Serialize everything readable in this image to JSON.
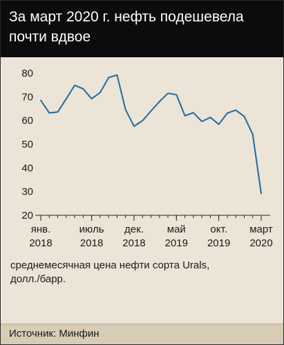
{
  "header": {
    "title_line1": "За март 2020 г. нефть подешевела",
    "title_line2": "почти вдвое"
  },
  "note": {
    "line1": "среднемесячная цена нефти сорта Urals,",
    "line2": "долл./барр."
  },
  "source": {
    "text": "Источник: Минфин"
  },
  "colors": {
    "header_bg": "#0c0c0c",
    "line": "#1e6aa3",
    "axis": "#222222",
    "background": "#ece4d6",
    "source_bg": "#d8ccb6"
  },
  "chart_data": {
    "type": "line",
    "title": "За март 2020 г. нефть подешевела почти вдвое",
    "ylabel": "среднемесячная цена нефти сорта Urals, долл./барр.",
    "xlabel": "",
    "ylim": [
      20,
      80
    ],
    "yticks": [
      20,
      30,
      40,
      50,
      60,
      70,
      80
    ],
    "grid": false,
    "x_categories": [
      "2018-01",
      "2018-02",
      "2018-03",
      "2018-04",
      "2018-05",
      "2018-06",
      "2018-07",
      "2018-08",
      "2018-09",
      "2018-10",
      "2018-11",
      "2018-12",
      "2019-01",
      "2019-02",
      "2019-03",
      "2019-04",
      "2019-05",
      "2019-06",
      "2019-07",
      "2019-08",
      "2019-09",
      "2019-10",
      "2019-11",
      "2019-12",
      "2020-01",
      "2020-02",
      "2020-03"
    ],
    "xticks": [
      {
        "index": 0,
        "line1": "янв.",
        "line2": "2018"
      },
      {
        "index": 6,
        "line1": "июль",
        "line2": "2018"
      },
      {
        "index": 11,
        "line1": "дек.",
        "line2": "2018"
      },
      {
        "index": 16,
        "line1": "май",
        "line2": "2019"
      },
      {
        "index": 21,
        "line1": "окт.",
        "line2": "2019"
      },
      {
        "index": 26,
        "line1": "март",
        "line2": "2020"
      }
    ],
    "series": [
      {
        "values": [
          68.5,
          63.2,
          63.6,
          69.1,
          74.9,
          73.4,
          69.2,
          71.8,
          78.1,
          79.2,
          64.6,
          57.6,
          59.9,
          64.0,
          68.0,
          71.5,
          70.9,
          62.0,
          63.3,
          59.6,
          61.3,
          58.4,
          63.1,
          64.4,
          61.7,
          54.2,
          29.2
        ]
      }
    ]
  }
}
